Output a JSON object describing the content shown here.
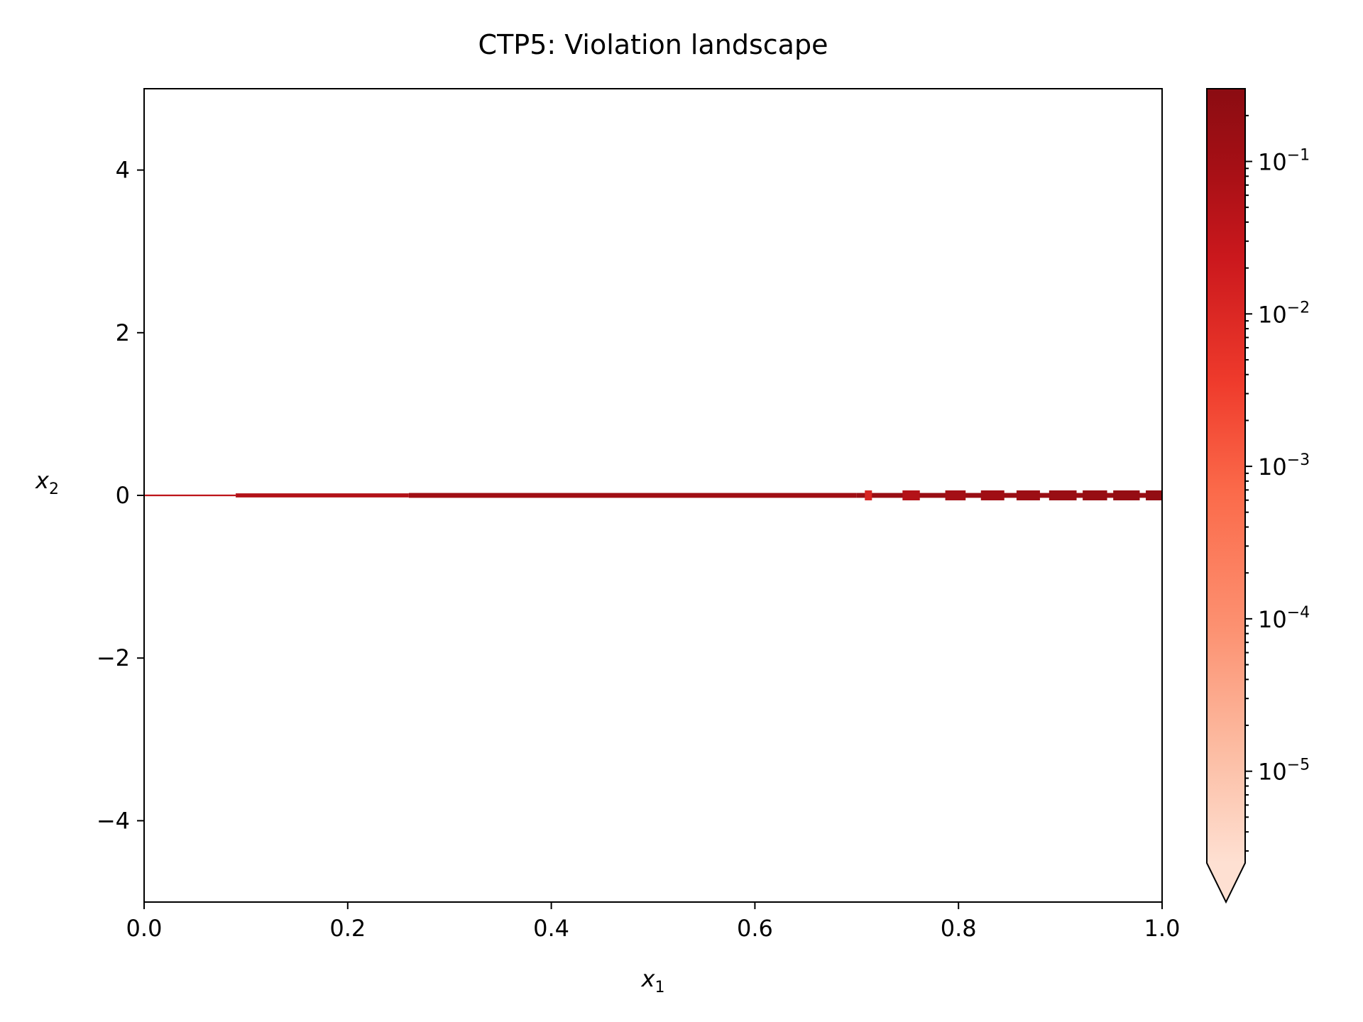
{
  "chart_data": {
    "type": "heatmap",
    "title": "CTP5: Violation landscape",
    "xlabel": "x",
    "xlabel_sub": "1",
    "ylabel": "x",
    "ylabel_sub": "2",
    "xlim": [
      0.0,
      1.0
    ],
    "ylim": [
      -5,
      5
    ],
    "xticks": [
      0.0,
      0.2,
      0.4,
      0.6,
      0.8,
      1.0
    ],
    "xtick_labels": [
      "0.0",
      "0.2",
      "0.4",
      "0.6",
      "0.8",
      "1.0"
    ],
    "yticks": [
      4,
      2,
      0,
      -2,
      -4
    ],
    "ytick_labels": [
      "4",
      "2",
      "0",
      "−2",
      "−4"
    ],
    "grid": false,
    "colormap": "Reds",
    "colormap_colors": [
      "#fee0d2",
      "#fcbba1",
      "#fc9272",
      "#fb6a4a",
      "#ef3b2c",
      "#cb181d",
      "#a50f15",
      "#8b0c12"
    ],
    "colorbar": {
      "scale": "log",
      "range": [
        2.5e-06,
        0.3
      ],
      "extend": "min",
      "ticks": [
        {
          "base": "10",
          "exp": "−1",
          "value": 0.1
        },
        {
          "base": "10",
          "exp": "−2",
          "value": 0.01
        },
        {
          "base": "10",
          "exp": "−3",
          "value": 0.001
        },
        {
          "base": "10",
          "exp": "−4",
          "value": 0.0001
        },
        {
          "base": "10",
          "exp": "−5",
          "value": 1e-05
        }
      ]
    },
    "violation_region": {
      "y": 0,
      "segments": [
        {
          "x0": 0.0,
          "x1": 0.09,
          "value": 0.02,
          "thickness": 0.02
        },
        {
          "x0": 0.09,
          "x1": 0.26,
          "value": 0.03,
          "thickness": 0.05
        },
        {
          "x0": 0.26,
          "x1": 0.7,
          "value": 0.08,
          "thickness": 0.06
        },
        {
          "x0": 0.7,
          "x1": 1.0,
          "value": 0.12,
          "thickness": 0.06
        }
      ],
      "bands": [
        {
          "x0": 0.708,
          "x1": 0.715,
          "value": 0.006
        },
        {
          "x0": 0.745,
          "x1": 0.762,
          "value": 0.03
        },
        {
          "x0": 0.787,
          "x1": 0.807,
          "value": 0.06
        },
        {
          "x0": 0.822,
          "x1": 0.845,
          "value": 0.08
        },
        {
          "x0": 0.857,
          "x1": 0.88,
          "value": 0.1
        },
        {
          "x0": 0.889,
          "x1": 0.916,
          "value": 0.12
        },
        {
          "x0": 0.922,
          "x1": 0.946,
          "value": 0.14
        },
        {
          "x0": 0.952,
          "x1": 0.978,
          "value": 0.16
        },
        {
          "x0": 0.984,
          "x1": 1.0,
          "value": 0.18
        }
      ]
    }
  }
}
